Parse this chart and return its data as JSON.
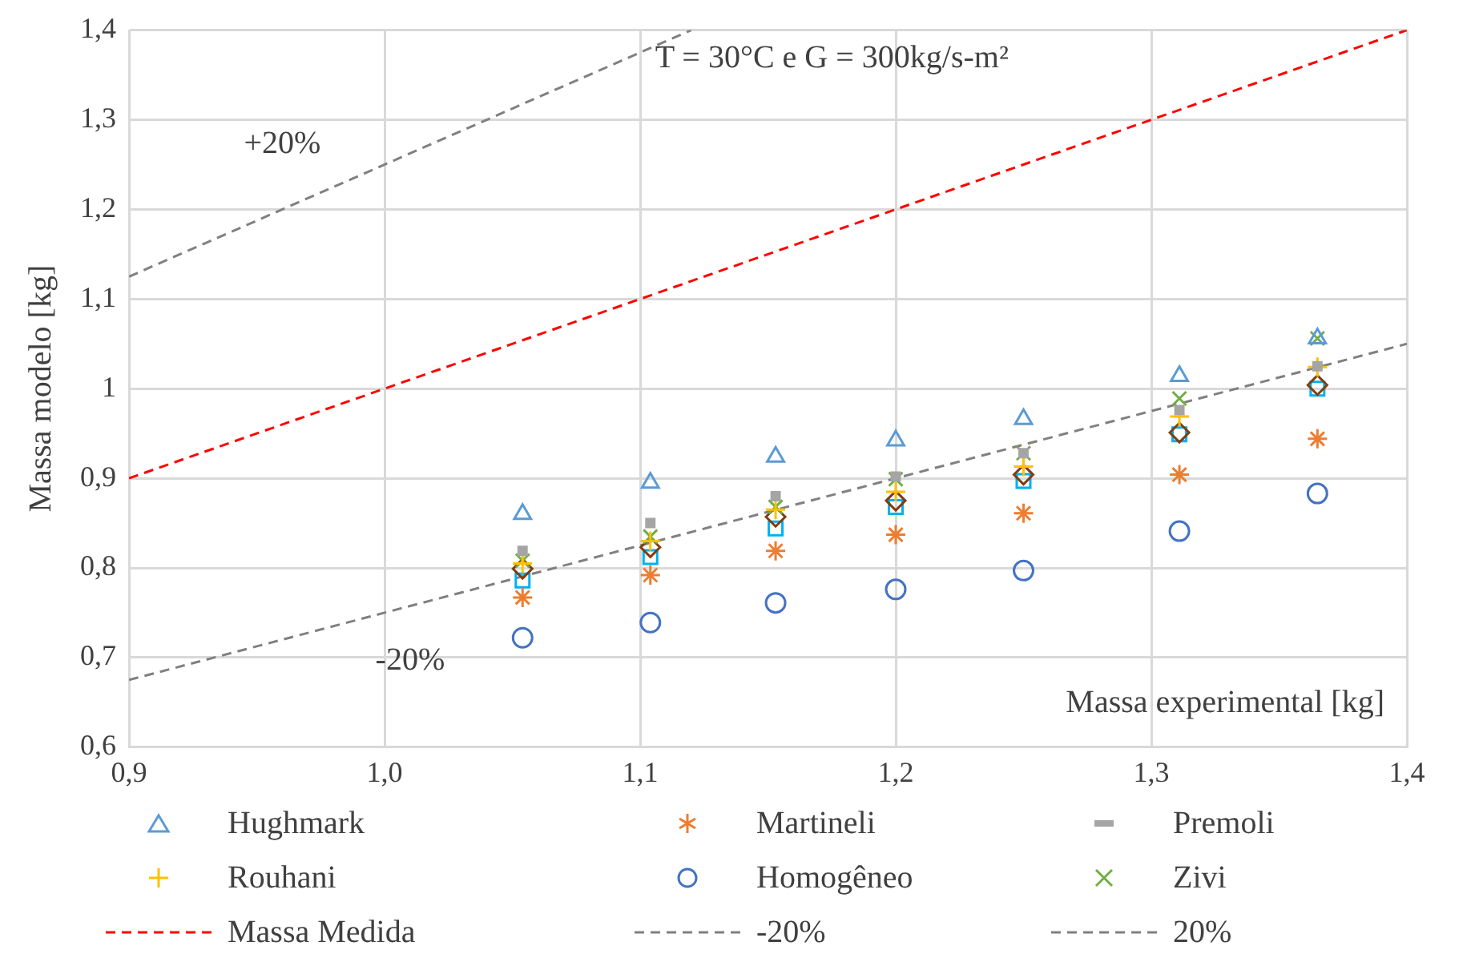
{
  "chart_data": {
    "type": "scatter",
    "title": "T = 30°C e G = 300kg/s-m²",
    "xlabel": "Massa experimental [kg]",
    "ylabel": "Massa modelo [kg]",
    "annotations": [
      "+20%",
      "-20%"
    ],
    "x": [
      1.054,
      1.104,
      1.153,
      1.2,
      1.25,
      1.311,
      1.365
    ],
    "series": [
      {
        "name": "Hughmark",
        "color": "#5b9bd5",
        "marker": "triangle",
        "values": [
          0.86,
          0.895,
          0.924,
          0.942,
          0.966,
          1.014,
          1.056
        ]
      },
      {
        "name": "Martineli",
        "color": "#ed7d31",
        "marker": "cross",
        "values": [
          0.767,
          0.792,
          0.819,
          0.837,
          0.861,
          0.904,
          0.944
        ]
      },
      {
        "name": "Premoli",
        "color": "#a5a5a5",
        "marker": "square",
        "values": [
          0.819,
          0.85,
          0.88,
          0.902,
          0.928,
          0.976,
          1.025
        ]
      },
      {
        "name": "Rouhani",
        "color": "#ffc000",
        "marker": "plus",
        "values": [
          0.805,
          0.83,
          0.865,
          0.885,
          0.913,
          0.969,
          1.024
        ]
      },
      {
        "name": "Homogêneo",
        "color": "#4472c4",
        "marker": "circle",
        "values": [
          0.722,
          0.739,
          0.761,
          0.776,
          0.797,
          0.841,
          0.883
        ]
      },
      {
        "name": "Zivi",
        "color": "#70ad47",
        "marker": "x",
        "values": [
          0.808,
          0.835,
          0.868,
          0.899,
          0.928,
          0.989,
          1.056
        ]
      },
      {
        "color": "#843c0c",
        "marker": "diamond",
        "values": [
          0.799,
          0.823,
          0.857,
          0.875,
          0.904,
          0.951,
          1.004
        ]
      },
      {
        "color": "#00b0f0",
        "marker": "square",
        "values": [
          0.786,
          0.812,
          0.844,
          0.868,
          0.897,
          0.949,
          1.0
        ]
      },
      {
        "name": "Massa  Medida",
        "type": "line",
        "color": "#ff0000",
        "line_style": "dashed",
        "x": [
          0.9,
          1.4
        ],
        "values": [
          0.9,
          1.4
        ]
      },
      {
        "name": "-20%",
        "type": "line",
        "color": "#808080",
        "line_style": "dashed",
        "x": [
          0.9,
          1.4
        ],
        "values": [
          0.675,
          1.05
        ]
      },
      {
        "name": "20%",
        "type": "line",
        "color": "#808080",
        "line_style": "dashed",
        "x": [
          0.9,
          1.12
        ],
        "values": [
          1.125,
          1.4
        ]
      }
    ],
    "xlim": [
      0.9,
      1.4
    ],
    "xticks": [
      {
        "value": 0.9,
        "label": "0,9"
      },
      {
        "value": 1.0,
        "label": "1,0"
      },
      {
        "value": 1.1,
        "label": "1,1"
      },
      {
        "value": 1.2,
        "label": "1,2"
      },
      {
        "value": 1.3,
        "label": "1,3"
      },
      {
        "value": 1.4,
        "label": "1,4"
      }
    ],
    "ylim": [
      0.6,
      1.4
    ],
    "yticks": [
      {
        "value": 0.6,
        "label": "0,6"
      },
      {
        "value": 0.7,
        "label": "0,7"
      },
      {
        "value": 0.8,
        "label": "0,8"
      },
      {
        "value": 0.9,
        "label": "0,9"
      },
      {
        "value": 1,
        "label": "1"
      },
      {
        "value": 1.1,
        "label": "1,1"
      },
      {
        "value": 1.2,
        "label": "1,2"
      },
      {
        "value": 1.3,
        "label": "1,3"
      },
      {
        "value": 1.4,
        "label": "1,4"
      }
    ],
    "grid": true,
    "legend": "bottom"
  }
}
